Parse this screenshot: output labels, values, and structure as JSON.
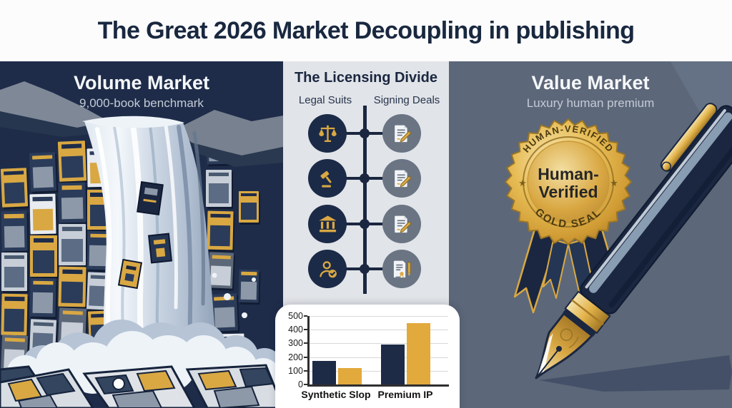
{
  "header": {
    "title": "The Great 2026 Market Decoupling in publishing"
  },
  "volume_panel": {
    "title": "Volume Market",
    "subtitle": "9,000-book benchmark"
  },
  "licensing_panel": {
    "title": "The Licensing Divide",
    "left_column_label": "Legal Suits",
    "right_column_label": "Signing Deals",
    "rows": [
      {
        "left_icon": "scales-icon",
        "right_icon": "signed-contract-icon"
      },
      {
        "left_icon": "gavel-icon",
        "right_icon": "signed-contract-icon"
      },
      {
        "left_icon": "courthouse-icon",
        "right_icon": "signed-contract-icon"
      },
      {
        "left_icon": "person-verified-icon",
        "right_icon": "contract-seal-pen-icon"
      }
    ]
  },
  "value_panel": {
    "title": "Value Market",
    "subtitle": "Luxury human premium",
    "seal": {
      "arc_top": "HUMAN-VERIFIED",
      "center_line1": "Human-",
      "center_line2": "Verified",
      "arc_bottom": "GOLD SEAL",
      "star": "★"
    }
  },
  "chart_data": {
    "type": "bar",
    "categories": [
      "Synthetic Slop",
      "Premium IP"
    ],
    "series": [
      {
        "name": "navy",
        "color": "#1d2b47",
        "values": [
          170,
          290
        ]
      },
      {
        "name": "gold",
        "color": "#e2a93c",
        "values": [
          120,
          450
        ]
      }
    ],
    "ylim": [
      0,
      500
    ],
    "yticks": [
      0,
      100,
      200,
      300,
      400,
      500
    ],
    "grid": true,
    "legend": false,
    "title": "",
    "xlabel": "",
    "ylabel": ""
  },
  "colors": {
    "navy": "#1d2b47",
    "gold": "#d9a843",
    "panel_left_bg": "#1e2c49",
    "panel_mid_bg": "#e1e4e8",
    "panel_right_bg": "#5c6779",
    "header_bg": "#fcfcfd",
    "title_text": "#19283f"
  }
}
